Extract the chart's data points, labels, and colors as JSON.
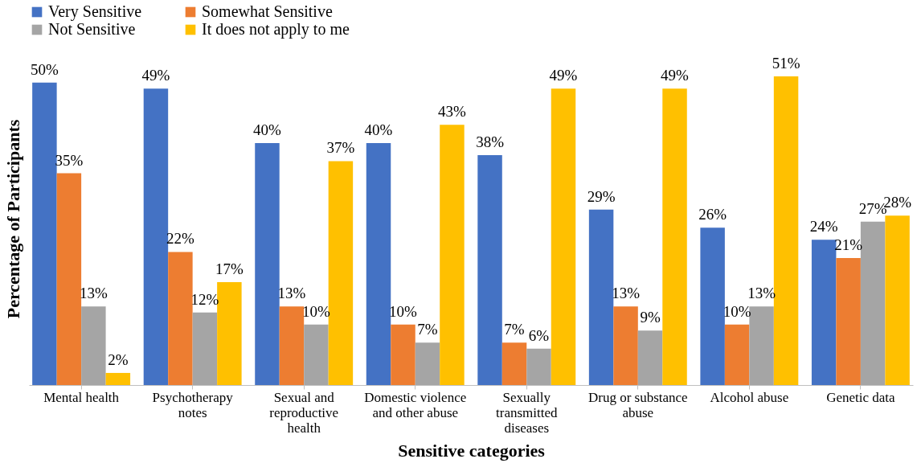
{
  "chart_data": {
    "type": "bar",
    "xlabel": "Sensitive categories",
    "ylabel": "Percentage of Participants",
    "legend": "top",
    "grid": false,
    "categories": [
      "Mental health",
      "Psychotherapy notes",
      "Sexual and reproductive health",
      "Domestic violence and other abuse",
      "Sexually transmitted diseases",
      "Drug or substance abuse",
      "Alcohol abuse",
      "Genetic data"
    ],
    "series": [
      {
        "name": "Very Sensitive",
        "color": "#4472c4",
        "values": [
          50,
          49,
          40,
          40,
          38,
          29,
          26,
          24
        ],
        "value_labels": [
          "50%",
          "49%",
          "40%",
          "40%",
          "38%",
          "29%",
          "26%",
          "24%"
        ]
      },
      {
        "name": "Somewhat Sensitive",
        "color": "#ed7d31",
        "values": [
          35,
          22,
          13,
          10,
          7,
          13,
          10,
          21
        ],
        "value_labels": [
          "35%",
          "22%",
          "13%",
          "10%",
          "7%",
          "13%",
          "10%",
          "21%"
        ]
      },
      {
        "name": "Not Sensitive",
        "color": "#a5a5a5",
        "values": [
          13,
          12,
          10,
          7,
          6,
          9,
          13,
          27
        ],
        "value_labels": [
          "13%",
          "12%",
          "10%",
          "7%",
          "6%",
          "9%",
          "13%",
          "27%"
        ]
      },
      {
        "name": "It does not apply to me",
        "color": "#ffc000",
        "values": [
          2,
          17,
          37,
          43,
          49,
          49,
          51,
          28
        ],
        "value_labels": [
          "2%",
          "17%",
          "37%",
          "43%",
          "49%",
          "49%",
          "51%",
          "28%"
        ]
      }
    ]
  }
}
